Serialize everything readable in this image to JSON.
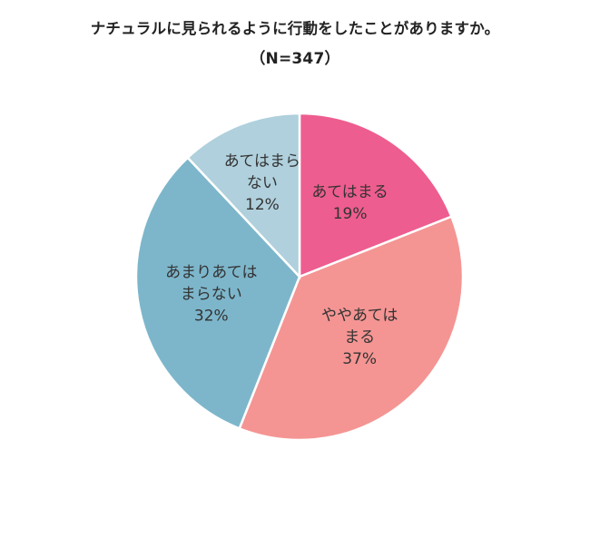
{
  "chart_data": {
    "type": "pie",
    "title": "ナチュラルに見られるように行動をしたことがありますか。",
    "subtitle": "（N=347）",
    "categories": [
      "あてはまる",
      "ややあてはまる",
      "あまりあてはまらない",
      "あてはまらない"
    ],
    "values": [
      19,
      37,
      32,
      12
    ],
    "labels": [
      {
        "lines": [
          "あてはまる"
        ],
        "pct": "19%"
      },
      {
        "lines": [
          "ややあては",
          "まる"
        ],
        "pct": "37%"
      },
      {
        "lines": [
          "あまりあては",
          "まらない"
        ],
        "pct": "32%"
      },
      {
        "lines": [
          "あてはまら",
          "ない"
        ],
        "pct": "12%"
      }
    ],
    "colors": [
      "#ee5d8f",
      "#f49593",
      "#7db6cb",
      "#afd0dc"
    ],
    "start": "12 o'clock",
    "direction": "clockwise",
    "legend": "none"
  }
}
